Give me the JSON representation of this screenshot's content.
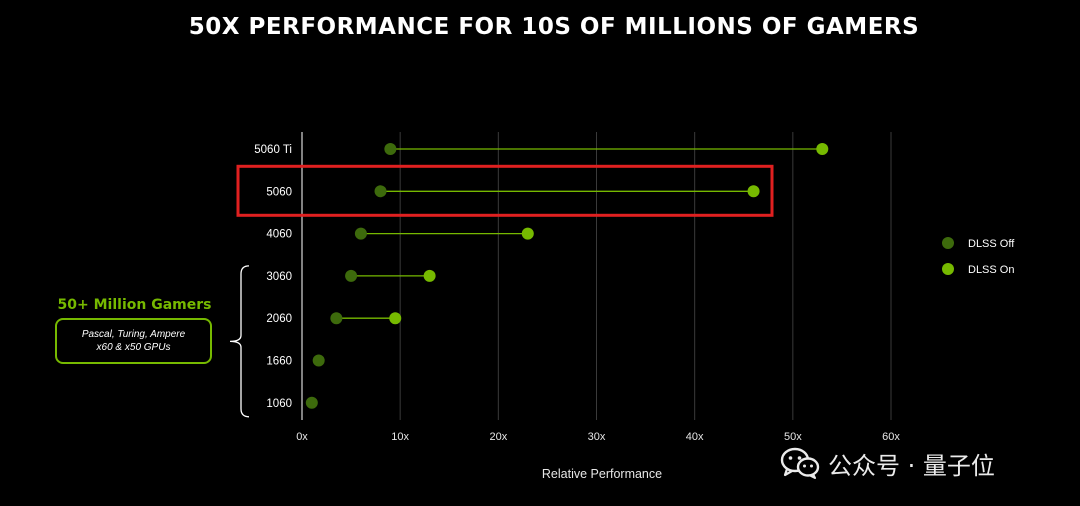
{
  "title": "50X PERFORMANCE FOR 10S OF MILLIONS OF GAMERS",
  "callout": {
    "heading": "50+ Million Gamers",
    "line1": "Pascal, Turing, Ampere",
    "line2": "x60 & x50 GPUs"
  },
  "watermark": {
    "text": "公众号 · 量子位",
    "icon": "wechat-icon"
  },
  "colors": {
    "dlss_off": "#3d6a0c",
    "dlss_on": "#76b900",
    "highlight": "#e02020",
    "grid": "#3a3a3a",
    "axis": "#d8d8d8"
  },
  "chart_data": {
    "type": "dumbbell",
    "xlabel": "Relative Performance",
    "xlim": [
      0,
      60
    ],
    "xticks": [
      0,
      10,
      20,
      30,
      40,
      50,
      60
    ],
    "xtick_labels": [
      "0x",
      "10x",
      "20x",
      "30x",
      "40x",
      "50x",
      "60x"
    ],
    "grid": true,
    "legend_position": "right",
    "categories": [
      "5060 Ti",
      "5060",
      "4060",
      "3060",
      "2060",
      "1660",
      "1060"
    ],
    "highlighted_category": "5060",
    "bracket_categories": [
      "3060",
      "2060",
      "1660",
      "1060"
    ],
    "series": [
      {
        "name": "DLSS Off",
        "values": [
          9,
          8,
          6,
          5,
          3.5,
          1.7,
          1
        ]
      },
      {
        "name": "DLSS On",
        "values": [
          53,
          46,
          23,
          13,
          9.5,
          null,
          null
        ]
      }
    ]
  }
}
